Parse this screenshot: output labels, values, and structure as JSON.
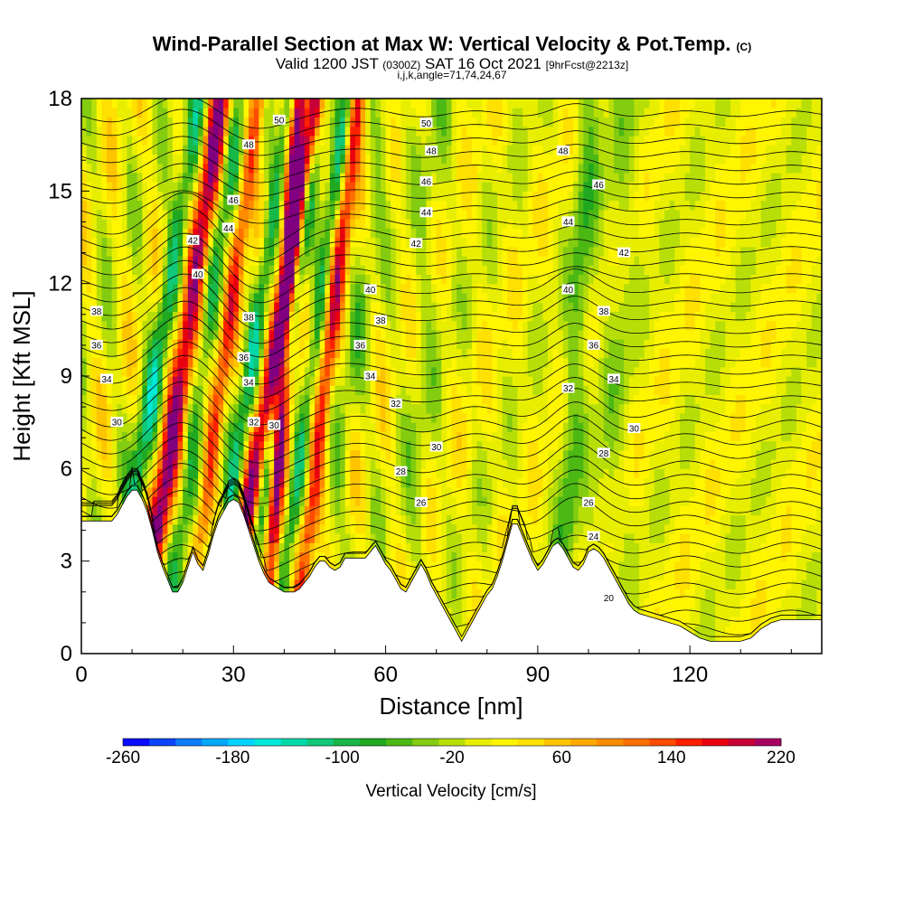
{
  "header": {
    "title_main": "Wind-Parallel Section at Max W: Vertical Velocity & Pot.Temp.",
    "title_mark": "(C)",
    "valid_prefix": "Valid 1200 JST",
    "valid_utc": "(0300Z)",
    "valid_date": "SAT 16 Oct 2021",
    "valid_fcst": "[9hrFcst@2213z]",
    "params": "i,j,k,angle=71,74,24,67"
  },
  "chart_data": {
    "type": "heatmap",
    "xlabel": "Distance [nm]",
    "ylabel": "Height [Kft MSL]",
    "xlim": [
      0,
      146
    ],
    "ylim": [
      0,
      18
    ],
    "x_ticks": [
      0,
      30,
      60,
      90,
      120
    ],
    "y_ticks": [
      0,
      3,
      6,
      9,
      12,
      15,
      18
    ],
    "colorbar": {
      "title": "Vertical Velocity [cm/s]",
      "min": -260,
      "max": 220,
      "step": 20,
      "tick_values": [
        -260,
        -180,
        -100,
        -20,
        60,
        140,
        220
      ],
      "tick_labels": [
        "-260",
        "-180",
        "-100",
        "-20",
        "60",
        "140",
        "220"
      ],
      "colors": [
        "#0a0aff",
        "#0b44ff",
        "#0a7cff",
        "#00a8ff",
        "#00d3ff",
        "#00e8d8",
        "#00d8a8",
        "#10c878",
        "#18b848",
        "#20a820",
        "#4cb814",
        "#84cc10",
        "#b8de08",
        "#e8ee00",
        "#fff500",
        "#ffe000",
        "#ffc400",
        "#ffa800",
        "#ff8c00",
        "#ff7000",
        "#ff4c00",
        "#ff2000",
        "#e80010",
        "#c80038",
        "#a80060",
        "#800080"
      ]
    },
    "theta_contours": {
      "unit": "C",
      "levels": [
        20,
        22,
        24,
        26,
        28,
        30,
        32,
        34,
        36,
        38,
        40,
        42,
        44,
        46,
        48,
        50
      ],
      "labels": [
        {
          "text": "20",
          "x": 104,
          "y": 1.8
        },
        {
          "text": "24",
          "x": 101,
          "y": 3.8
        },
        {
          "text": "26",
          "x": 100,
          "y": 4.9
        },
        {
          "text": "26",
          "x": 67,
          "y": 4.9
        },
        {
          "text": "28",
          "x": 63,
          "y": 5.9
        },
        {
          "text": "28",
          "x": 103,
          "y": 6.5
        },
        {
          "text": "30",
          "x": 70,
          "y": 6.7
        },
        {
          "text": "30",
          "x": 109,
          "y": 7.3
        },
        {
          "text": "30",
          "x": 38,
          "y": 7.4
        },
        {
          "text": "30",
          "x": 7,
          "y": 7.5
        },
        {
          "text": "32",
          "x": 34,
          "y": 7.5
        },
        {
          "text": "32",
          "x": 62,
          "y": 8.1
        },
        {
          "text": "32",
          "x": 96,
          "y": 8.6
        },
        {
          "text": "34",
          "x": 33,
          "y": 8.8
        },
        {
          "text": "34",
          "x": 57,
          "y": 9.0
        },
        {
          "text": "34",
          "x": 105,
          "y": 8.9
        },
        {
          "text": "34",
          "x": 5,
          "y": 8.9
        },
        {
          "text": "36",
          "x": 32,
          "y": 9.6
        },
        {
          "text": "36",
          "x": 55,
          "y": 10.0
        },
        {
          "text": "36",
          "x": 101,
          "y": 10.0
        },
        {
          "text": "36",
          "x": 3,
          "y": 10.0
        },
        {
          "text": "38",
          "x": 33,
          "y": 10.9
        },
        {
          "text": "38",
          "x": 59,
          "y": 10.8
        },
        {
          "text": "38",
          "x": 103,
          "y": 11.1
        },
        {
          "text": "38",
          "x": 3,
          "y": 11.1
        },
        {
          "text": "40",
          "x": 23,
          "y": 12.3
        },
        {
          "text": "40",
          "x": 57,
          "y": 11.8
        },
        {
          "text": "40",
          "x": 96,
          "y": 11.8
        },
        {
          "text": "42",
          "x": 22,
          "y": 13.4
        },
        {
          "text": "42",
          "x": 66,
          "y": 13.3
        },
        {
          "text": "42",
          "x": 107,
          "y": 13.0
        },
        {
          "text": "44",
          "x": 29,
          "y": 13.8
        },
        {
          "text": "44",
          "x": 68,
          "y": 14.3
        },
        {
          "text": "44",
          "x": 96,
          "y": 14.0
        },
        {
          "text": "46",
          "x": 30,
          "y": 14.7
        },
        {
          "text": "46",
          "x": 68,
          "y": 15.3
        },
        {
          "text": "46",
          "x": 102,
          "y": 15.2
        },
        {
          "text": "48",
          "x": 33,
          "y": 16.5
        },
        {
          "text": "48",
          "x": 69,
          "y": 16.3
        },
        {
          "text": "48",
          "x": 95,
          "y": 16.3
        },
        {
          "text": "50",
          "x": 39,
          "y": 17.3
        },
        {
          "text": "50",
          "x": 68,
          "y": 17.2
        }
      ]
    },
    "terrain_kft": {
      "x": [
        0,
        6,
        7,
        8,
        9,
        10,
        11,
        12,
        13,
        14,
        15,
        16,
        17,
        18,
        19,
        20,
        21,
        22,
        23,
        24,
        25,
        26,
        27,
        28,
        29,
        30,
        31,
        32,
        33,
        34,
        35,
        36,
        37,
        38,
        39,
        40,
        41,
        42,
        43,
        44,
        45,
        46,
        47,
        48,
        49,
        50,
        51,
        52,
        53,
        54,
        55,
        56,
        57,
        58,
        59,
        60,
        61,
        62,
        63,
        64,
        65,
        66,
        67,
        68,
        69,
        70,
        71,
        72,
        73,
        74,
        75,
        76,
        77,
        78,
        79,
        80,
        81,
        82,
        83,
        84,
        85,
        86,
        87,
        88,
        89,
        90,
        91,
        92,
        93,
        94,
        95,
        96,
        97,
        98,
        99,
        100,
        101,
        102,
        103,
        104,
        105,
        106,
        107,
        108,
        109,
        110,
        112,
        114,
        116,
        118,
        120,
        122,
        124,
        126,
        128,
        130,
        132,
        134,
        136,
        138,
        140,
        142,
        144,
        146
      ],
      "y": [
        4.3,
        4.3,
        4.5,
        4.8,
        5.1,
        5.3,
        5.3,
        5.0,
        4.6,
        4.0,
        3.3,
        2.8,
        2.4,
        2.0,
        2.0,
        2.3,
        2.8,
        3.3,
        2.9,
        2.7,
        3.2,
        3.8,
        4.3,
        4.6,
        4.9,
        5.0,
        4.9,
        4.5,
        4.0,
        3.5,
        3.0,
        2.6,
        2.3,
        2.2,
        2.1,
        2.0,
        2.0,
        2.0,
        2.1,
        2.3,
        2.5,
        2.8,
        3.0,
        3.0,
        2.8,
        2.7,
        2.8,
        3.1,
        3.1,
        3.1,
        3.1,
        3.1,
        3.3,
        3.5,
        3.2,
        2.9,
        2.7,
        2.4,
        2.1,
        2.0,
        2.3,
        2.6,
        2.9,
        2.6,
        2.2,
        1.9,
        1.6,
        1.3,
        1.0,
        0.7,
        0.4,
        0.7,
        1.0,
        1.3,
        1.6,
        1.9,
        2.1,
        2.5,
        3.0,
        3.6,
        4.2,
        4.2,
        3.8,
        3.4,
        3.0,
        2.7,
        2.9,
        3.2,
        3.5,
        3.6,
        3.4,
        3.1,
        2.8,
        2.7,
        2.9,
        3.3,
        3.4,
        3.3,
        3.1,
        2.8,
        2.5,
        2.2,
        1.9,
        1.6,
        1.4,
        1.3,
        1.2,
        1.1,
        1.0,
        0.9,
        0.7,
        0.5,
        0.4,
        0.4,
        0.4,
        0.4,
        0.5,
        0.8,
        1.0,
        1.1,
        1.1,
        1.1,
        1.1,
        1.1
      ]
    }
  }
}
